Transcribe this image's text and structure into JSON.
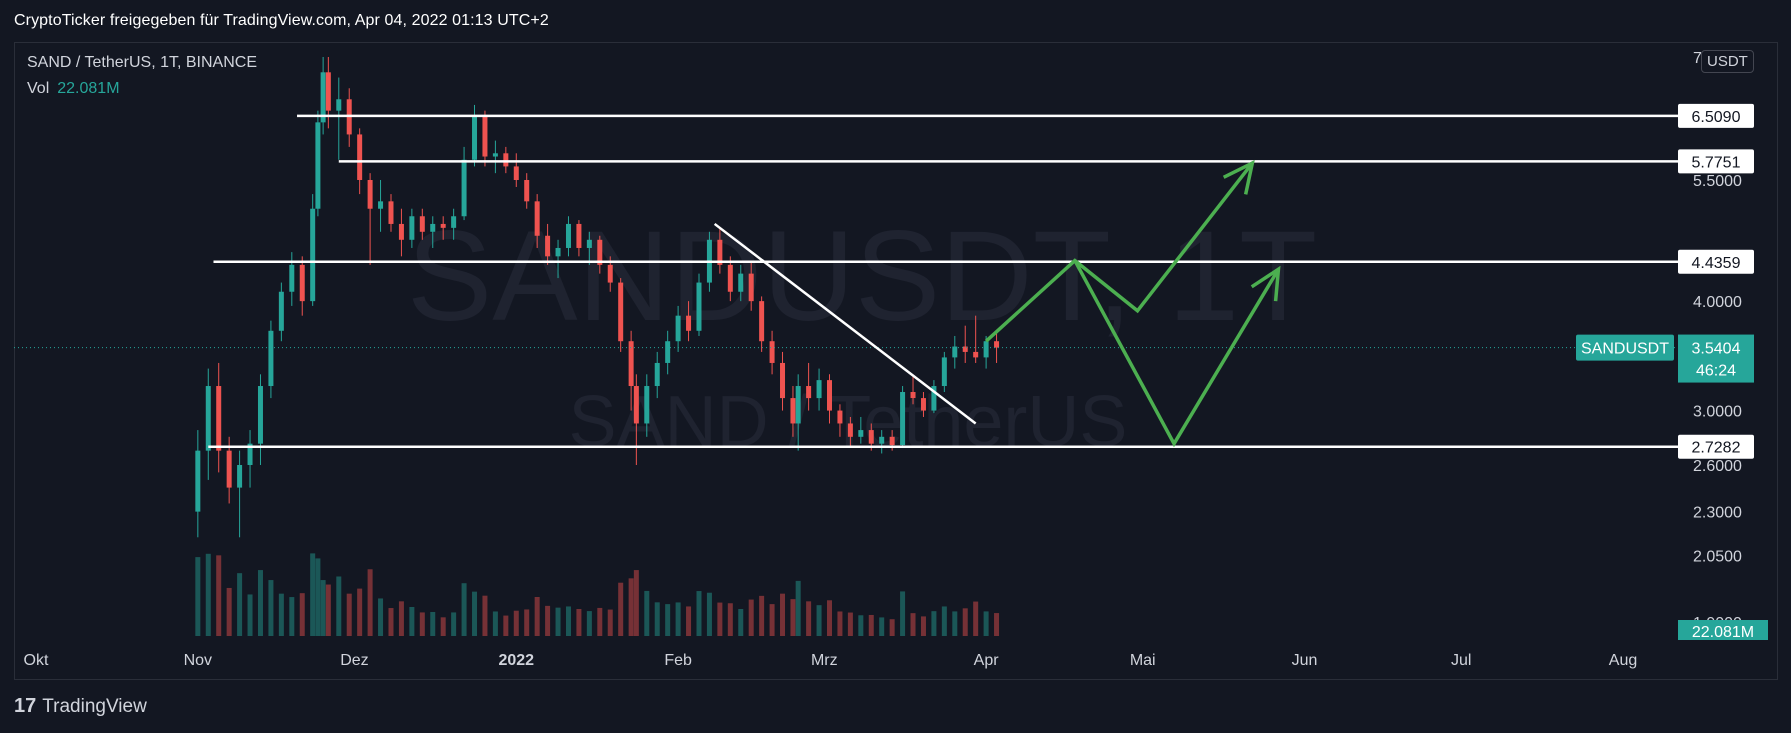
{
  "header": {
    "title": "CryptoTicker freigegeben für TradingView.com, Apr 04, 2022 01:13 UTC+2"
  },
  "legend": {
    "symbol": "SAND / TetherUS, 1T, BINANCE",
    "vol_label": "Vol",
    "vol_value": "22.081M"
  },
  "currency_button": "USDT",
  "watermark": {
    "line1": "SANDUSDT, 1T",
    "line2": "SAND / TetherUS"
  },
  "footer": {
    "logo": "17",
    "brand": "TradingView"
  },
  "colors": {
    "background": "#131722",
    "up": "#26a69a",
    "down": "#ef5350",
    "drawing": "#4caf50",
    "level_line": "#ffffff"
  },
  "chart_data": {
    "type": "candlestick",
    "pair": "SANDUSDT",
    "interval": "1T",
    "exchange": "BINANCE",
    "x_ticks": [
      "Okt",
      "Nov",
      "Dez",
      "2022",
      "Feb",
      "Mrz",
      "Apr",
      "Mai",
      "Jun",
      "Jul",
      "Aug"
    ],
    "y_ticks": [
      "5.5000",
      "4.0000",
      "3.0000",
      "2.6000",
      "2.3000",
      "2.0500"
    ],
    "y_tick_values": [
      5.5,
      4.0,
      3.0,
      2.6,
      2.3,
      2.05
    ],
    "y_partial_ticks": [
      "7",
      "1.9000"
    ],
    "y_scale": "log",
    "ylim": [
      1.85,
      7.6
    ],
    "grid": false,
    "last_price": {
      "symbol_label": "SANDUSDT",
      "value": 3.5404,
      "value_label": "3.5404",
      "countdown": "46:24"
    },
    "volume_last": "22.081M",
    "horizontal_levels": [
      {
        "value": 6.509,
        "label": "6.5090",
        "from_date": "2021-11-20"
      },
      {
        "value": 5.7751,
        "label": "5.7751",
        "from_date": "2021-11-28"
      },
      {
        "value": 4.4359,
        "label": "4.4359",
        "from_date": "2021-11-04"
      },
      {
        "value": 2.7282,
        "label": "2.7282",
        "from_date": "2021-11-03"
      }
    ],
    "trendline": [
      {
        "date": "2022-02-08",
        "value": 4.9
      },
      {
        "date": "2022-03-30",
        "value": 2.9
      }
    ],
    "projection_paths": [
      [
        {
          "date": "2022-04-01",
          "value": 3.6
        },
        {
          "date": "2022-04-18",
          "value": 4.45
        },
        {
          "date": "2022-04-30",
          "value": 3.9
        },
        {
          "date": "2022-05-22",
          "value": 5.75
        }
      ],
      [
        {
          "date": "2022-04-18",
          "value": 4.45
        },
        {
          "date": "2022-05-07",
          "value": 2.75
        },
        {
          "date": "2022-05-27",
          "value": 4.35
        }
      ]
    ],
    "ohlc": [
      {
        "date": "2021-11-01",
        "o": 2.3,
        "h": 2.85,
        "l": 2.15,
        "c": 2.7
      },
      {
        "date": "2021-11-03",
        "o": 2.7,
        "h": 3.35,
        "l": 2.5,
        "c": 3.2
      },
      {
        "date": "2021-11-05",
        "o": 3.2,
        "h": 3.4,
        "l": 2.55,
        "c": 2.7
      },
      {
        "date": "2021-11-07",
        "o": 2.7,
        "h": 2.8,
        "l": 2.35,
        "c": 2.45
      },
      {
        "date": "2021-11-09",
        "o": 2.45,
        "h": 2.7,
        "l": 2.15,
        "c": 2.6
      },
      {
        "date": "2021-11-11",
        "o": 2.6,
        "h": 2.85,
        "l": 2.45,
        "c": 2.75
      },
      {
        "date": "2021-11-13",
        "o": 2.75,
        "h": 3.3,
        "l": 2.6,
        "c": 3.2
      },
      {
        "date": "2021-11-15",
        "o": 3.2,
        "h": 3.8,
        "l": 3.1,
        "c": 3.7
      },
      {
        "date": "2021-11-17",
        "o": 3.7,
        "h": 4.2,
        "l": 3.6,
        "c": 4.1
      },
      {
        "date": "2021-11-19",
        "o": 4.1,
        "h": 4.55,
        "l": 3.95,
        "c": 4.4
      },
      {
        "date": "2021-11-21",
        "o": 4.4,
        "h": 4.5,
        "l": 3.85,
        "c": 4.0
      },
      {
        "date": "2021-11-23",
        "o": 4.0,
        "h": 5.3,
        "l": 3.95,
        "c": 5.1
      },
      {
        "date": "2021-11-24",
        "o": 5.1,
        "h": 6.6,
        "l": 5.0,
        "c": 6.4
      },
      {
        "date": "2021-11-25",
        "o": 6.4,
        "h": 7.6,
        "l": 6.2,
        "c": 7.3
      },
      {
        "date": "2021-11-26",
        "o": 7.3,
        "h": 7.6,
        "l": 6.3,
        "c": 6.6
      },
      {
        "date": "2021-11-28",
        "o": 6.6,
        "h": 7.2,
        "l": 5.8,
        "c": 6.8
      },
      {
        "date": "2021-11-30",
        "o": 6.8,
        "h": 7.0,
        "l": 6.0,
        "c": 6.2
      },
      {
        "date": "2021-12-02",
        "o": 6.2,
        "h": 6.3,
        "l": 5.3,
        "c": 5.5
      },
      {
        "date": "2021-12-04",
        "o": 5.5,
        "h": 5.6,
        "l": 4.4,
        "c": 5.1
      },
      {
        "date": "2021-12-06",
        "o": 5.1,
        "h": 5.5,
        "l": 4.8,
        "c": 5.2
      },
      {
        "date": "2021-12-08",
        "o": 5.2,
        "h": 5.3,
        "l": 4.8,
        "c": 4.9
      },
      {
        "date": "2021-12-10",
        "o": 4.9,
        "h": 5.1,
        "l": 4.5,
        "c": 4.7
      },
      {
        "date": "2021-12-12",
        "o": 4.7,
        "h": 5.1,
        "l": 4.6,
        "c": 5.0
      },
      {
        "date": "2021-12-14",
        "o": 5.0,
        "h": 5.1,
        "l": 4.7,
        "c": 4.8
      },
      {
        "date": "2021-12-16",
        "o": 4.8,
        "h": 5.0,
        "l": 4.6,
        "c": 4.9
      },
      {
        "date": "2021-12-18",
        "o": 4.9,
        "h": 5.0,
        "l": 4.7,
        "c": 4.85
      },
      {
        "date": "2021-12-20",
        "o": 4.85,
        "h": 5.1,
        "l": 4.7,
        "c": 5.0
      },
      {
        "date": "2021-12-22",
        "o": 5.0,
        "h": 6.0,
        "l": 4.95,
        "c": 5.8
      },
      {
        "date": "2021-12-24",
        "o": 5.8,
        "h": 6.7,
        "l": 5.7,
        "c": 6.5
      },
      {
        "date": "2021-12-26",
        "o": 6.5,
        "h": 6.6,
        "l": 5.7,
        "c": 5.85
      },
      {
        "date": "2021-12-28",
        "o": 5.85,
        "h": 6.1,
        "l": 5.6,
        "c": 5.9
      },
      {
        "date": "2021-12-30",
        "o": 5.9,
        "h": 6.0,
        "l": 5.6,
        "c": 5.7
      },
      {
        "date": "2022-01-01",
        "o": 5.7,
        "h": 5.9,
        "l": 5.4,
        "c": 5.5
      },
      {
        "date": "2022-01-03",
        "o": 5.5,
        "h": 5.6,
        "l": 5.1,
        "c": 5.2
      },
      {
        "date": "2022-01-05",
        "o": 5.2,
        "h": 5.3,
        "l": 4.6,
        "c": 4.75
      },
      {
        "date": "2022-01-07",
        "o": 4.75,
        "h": 4.9,
        "l": 4.4,
        "c": 4.5
      },
      {
        "date": "2022-01-09",
        "o": 4.5,
        "h": 4.7,
        "l": 4.25,
        "c": 4.6
      },
      {
        "date": "2022-01-11",
        "o": 4.6,
        "h": 5.0,
        "l": 4.5,
        "c": 4.9
      },
      {
        "date": "2022-01-13",
        "o": 4.9,
        "h": 4.95,
        "l": 4.5,
        "c": 4.6
      },
      {
        "date": "2022-01-15",
        "o": 4.6,
        "h": 4.8,
        "l": 4.4,
        "c": 4.7
      },
      {
        "date": "2022-01-17",
        "o": 4.7,
        "h": 4.75,
        "l": 4.3,
        "c": 4.4
      },
      {
        "date": "2022-01-19",
        "o": 4.4,
        "h": 4.5,
        "l": 4.1,
        "c": 4.2
      },
      {
        "date": "2022-01-21",
        "o": 4.2,
        "h": 4.25,
        "l": 3.5,
        "c": 3.6
      },
      {
        "date": "2022-01-23",
        "o": 3.6,
        "h": 3.7,
        "l": 3.0,
        "c": 3.2
      },
      {
        "date": "2022-01-24",
        "o": 3.2,
        "h": 3.3,
        "l": 2.6,
        "c": 2.9
      },
      {
        "date": "2022-01-26",
        "o": 2.9,
        "h": 3.3,
        "l": 2.8,
        "c": 3.2
      },
      {
        "date": "2022-01-28",
        "o": 3.2,
        "h": 3.5,
        "l": 3.1,
        "c": 3.4
      },
      {
        "date": "2022-01-30",
        "o": 3.4,
        "h": 3.7,
        "l": 3.3,
        "c": 3.6
      },
      {
        "date": "2022-02-01",
        "o": 3.6,
        "h": 3.95,
        "l": 3.5,
        "c": 3.85
      },
      {
        "date": "2022-02-03",
        "o": 3.85,
        "h": 4.0,
        "l": 3.6,
        "c": 3.7
      },
      {
        "date": "2022-02-05",
        "o": 3.7,
        "h": 4.3,
        "l": 3.65,
        "c": 4.2
      },
      {
        "date": "2022-02-07",
        "o": 4.2,
        "h": 4.8,
        "l": 4.1,
        "c": 4.7
      },
      {
        "date": "2022-02-09",
        "o": 4.7,
        "h": 4.85,
        "l": 4.3,
        "c": 4.4
      },
      {
        "date": "2022-02-11",
        "o": 4.4,
        "h": 4.5,
        "l": 4.0,
        "c": 4.1
      },
      {
        "date": "2022-02-13",
        "o": 4.1,
        "h": 4.4,
        "l": 4.0,
        "c": 4.3
      },
      {
        "date": "2022-02-15",
        "o": 4.3,
        "h": 4.45,
        "l": 3.9,
        "c": 4.0
      },
      {
        "date": "2022-02-17",
        "o": 4.0,
        "h": 4.05,
        "l": 3.5,
        "c": 3.6
      },
      {
        "date": "2022-02-19",
        "o": 3.6,
        "h": 3.7,
        "l": 3.3,
        "c": 3.4
      },
      {
        "date": "2022-02-21",
        "o": 3.4,
        "h": 3.5,
        "l": 3.0,
        "c": 3.1
      },
      {
        "date": "2022-02-23",
        "o": 3.1,
        "h": 3.2,
        "l": 2.8,
        "c": 2.9
      },
      {
        "date": "2022-02-24",
        "o": 2.9,
        "h": 3.3,
        "l": 2.7,
        "c": 3.2
      },
      {
        "date": "2022-02-26",
        "o": 3.2,
        "h": 3.4,
        "l": 3.0,
        "c": 3.1
      },
      {
        "date": "2022-02-28",
        "o": 3.1,
        "h": 3.35,
        "l": 3.0,
        "c": 3.25
      },
      {
        "date": "2022-03-02",
        "o": 3.25,
        "h": 3.3,
        "l": 2.9,
        "c": 3.0
      },
      {
        "date": "2022-03-04",
        "o": 3.0,
        "h": 3.05,
        "l": 2.8,
        "c": 2.9
      },
      {
        "date": "2022-03-06",
        "o": 2.9,
        "h": 2.95,
        "l": 2.72,
        "c": 2.8
      },
      {
        "date": "2022-03-08",
        "o": 2.8,
        "h": 2.95,
        "l": 2.75,
        "c": 2.85
      },
      {
        "date": "2022-03-10",
        "o": 2.85,
        "h": 2.9,
        "l": 2.7,
        "c": 2.75
      },
      {
        "date": "2022-03-12",
        "o": 2.75,
        "h": 2.85,
        "l": 2.68,
        "c": 2.8
      },
      {
        "date": "2022-03-14",
        "o": 2.8,
        "h": 2.85,
        "l": 2.7,
        "c": 2.74
      },
      {
        "date": "2022-03-16",
        "o": 2.74,
        "h": 3.2,
        "l": 2.72,
        "c": 3.15
      },
      {
        "date": "2022-03-18",
        "o": 3.15,
        "h": 3.3,
        "l": 3.05,
        "c": 3.1
      },
      {
        "date": "2022-03-20",
        "o": 3.1,
        "h": 3.15,
        "l": 2.95,
        "c": 3.0
      },
      {
        "date": "2022-03-22",
        "o": 3.0,
        "h": 3.25,
        "l": 2.98,
        "c": 3.2
      },
      {
        "date": "2022-03-24",
        "o": 3.2,
        "h": 3.5,
        "l": 3.15,
        "c": 3.45
      },
      {
        "date": "2022-03-26",
        "o": 3.45,
        "h": 3.65,
        "l": 3.35,
        "c": 3.55
      },
      {
        "date": "2022-03-28",
        "o": 3.55,
        "h": 3.75,
        "l": 3.4,
        "c": 3.5
      },
      {
        "date": "2022-03-30",
        "o": 3.5,
        "h": 3.85,
        "l": 3.4,
        "c": 3.45
      },
      {
        "date": "2022-04-01",
        "o": 3.45,
        "h": 3.65,
        "l": 3.35,
        "c": 3.6
      },
      {
        "date": "2022-04-03",
        "o": 3.6,
        "h": 3.68,
        "l": 3.4,
        "c": 3.54
      }
    ]
  }
}
